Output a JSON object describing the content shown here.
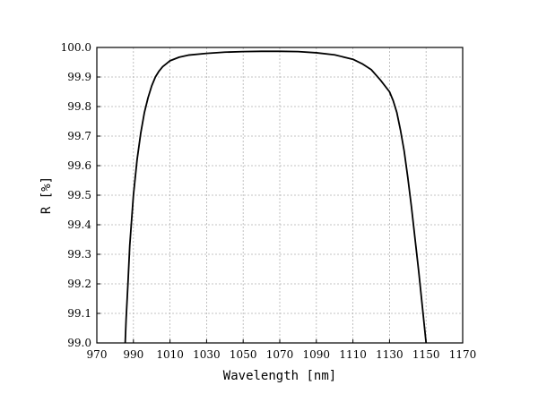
{
  "chart_data": {
    "type": "line",
    "title": "",
    "xlabel": "Wavelength [nm]",
    "ylabel": "R [%]",
    "xlim": [
      970,
      1170
    ],
    "ylim": [
      99.0,
      100.0
    ],
    "grid": true,
    "xticks": [
      "970",
      "990",
      "1010",
      "1030",
      "1050",
      "1070",
      "1090",
      "1110",
      "1130",
      "1150",
      "1170"
    ],
    "yticks": [
      "99.0",
      "99.1",
      "99.2",
      "99.3",
      "99.4",
      "99.5",
      "99.6",
      "99.7",
      "99.8",
      "99.9",
      "100.0"
    ],
    "series": [
      {
        "color": "#000000",
        "x": [
          985.5,
          986,
          987,
          988,
          990,
          992,
          994,
          996,
          998,
          1000,
          1002,
          1004,
          1006,
          1008,
          1010,
          1015,
          1020,
          1030,
          1040,
          1050,
          1060,
          1070,
          1080,
          1090,
          1100,
          1110,
          1115,
          1120,
          1125,
          1130,
          1132,
          1134,
          1136,
          1138,
          1140,
          1142,
          1144,
          1146,
          1148,
          1149,
          1150,
          1151,
          1152
        ],
        "y": [
          99.0,
          99.08,
          99.2,
          99.33,
          99.5,
          99.62,
          99.71,
          99.78,
          99.83,
          99.87,
          99.9,
          99.92,
          99.935,
          99.945,
          99.955,
          99.967,
          99.974,
          99.98,
          99.984,
          99.986,
          99.987,
          99.987,
          99.986,
          99.982,
          99.975,
          99.96,
          99.945,
          99.925,
          99.89,
          99.85,
          99.82,
          99.78,
          99.72,
          99.65,
          99.56,
          99.46,
          99.35,
          99.24,
          99.12,
          99.06,
          99.0,
          98.99,
          98.98
        ]
      }
    ]
  }
}
